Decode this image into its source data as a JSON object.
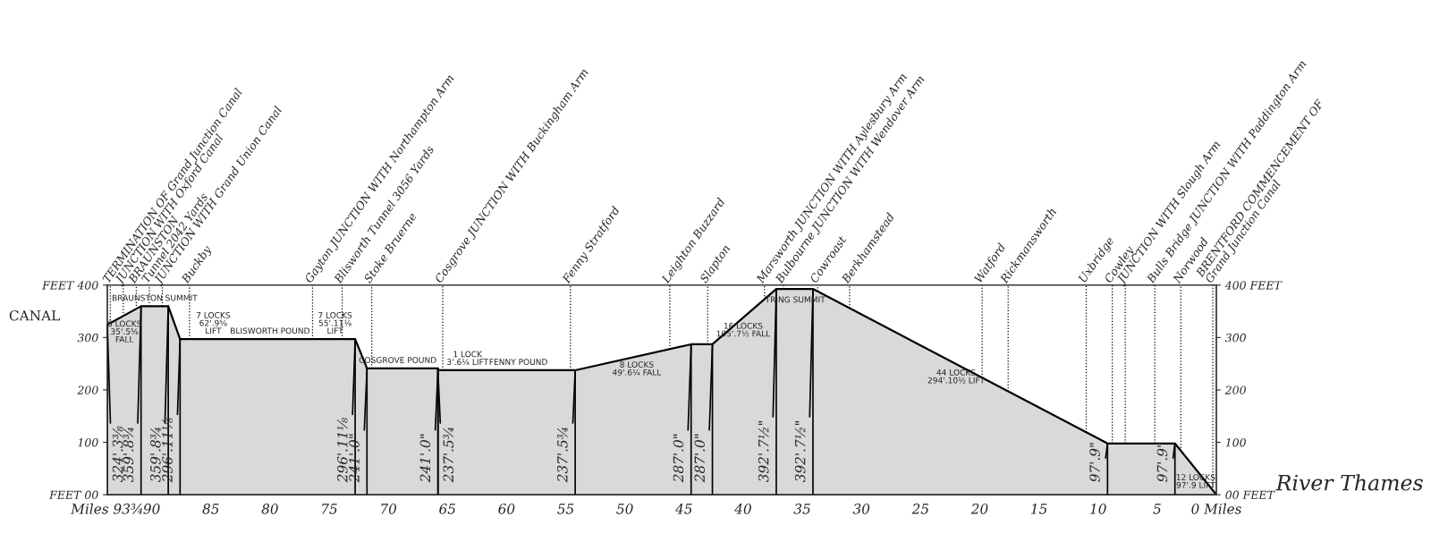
{
  "chart_data": {
    "type": "area",
    "x": [
      93.75,
      90.9,
      88.6,
      87.6,
      72.8,
      71.8,
      65.8,
      65.8,
      54.2,
      44.4,
      42.6,
      37.2,
      34.1,
      9.2,
      3.5,
      0
    ],
    "series": [
      {
        "color": "#d9d9d9",
        "values": [
          324.3,
          359.7,
          359.7,
          296.9,
          296.9,
          241.0,
          241.0,
          237.5,
          237.5,
          287.0,
          287.0,
          392.6,
          392.6,
          97.8,
          97.8,
          0
        ]
      }
    ],
    "xlim": [
      93.75,
      0
    ],
    "xticks": [
      {
        "value": 93.75,
        "label": "Miles 93¾"
      },
      90,
      85,
      80,
      75,
      70,
      65,
      60,
      55,
      50,
      45,
      40,
      35,
      30,
      25,
      20,
      15,
      10,
      5,
      {
        "value": 0,
        "label": "0 Miles"
      }
    ],
    "ylim": [
      0,
      400
    ],
    "yticks": [
      {
        "value": 0,
        "label": "FEET 00"
      },
      100,
      200,
      300,
      {
        "value": 400,
        "label": "FEET 400"
      }
    ],
    "y2lim": [
      0,
      400
    ],
    "y2ticks": [
      {
        "value": 0,
        "label": "00 FEET"
      },
      100,
      200,
      300,
      {
        "value": 400,
        "label": "400 FEET"
      }
    ],
    "ref_lines": [
      {
        "axis": "x",
        "value": 93.5,
        "label": "TERMINATION OF Grand Junction Canal",
        "line_style": "dotted"
      },
      {
        "axis": "x",
        "value": 92.4,
        "label": "JUNCTION WITH Oxford Canal",
        "line_style": "dotted"
      },
      {
        "axis": "x",
        "value": 91.3,
        "label": "BRAUNSTON",
        "line_style": "dotted"
      },
      {
        "axis": "x",
        "value": 90.2,
        "label": "Tunnel 2042 Yards",
        "line_style": "dotted"
      },
      {
        "axis": "x",
        "value": 89.1,
        "label": "JUNCTION WITH Grand Union Canal",
        "line_style": "dotted"
      },
      {
        "axis": "x",
        "value": 86.8,
        "label": "Buckby",
        "line_style": "dotted"
      },
      {
        "axis": "x",
        "value": 76.4,
        "label": "Gayton JUNCTION WITH Northampton Arm",
        "line_style": "dotted"
      },
      {
        "axis": "x",
        "value": 73.9,
        "label": "Blisworth Tunnel 3056 Yards",
        "line_style": "dotted"
      },
      {
        "axis": "x",
        "value": 71.4,
        "label": "Stoke Bruerne",
        "line_style": "dotted"
      },
      {
        "axis": "x",
        "value": 65.4,
        "label": "Cosgrove JUNCTION WITH Buckingham Arm",
        "line_style": "dotted"
      },
      {
        "axis": "x",
        "value": 54.6,
        "label": "Fenny Stratford",
        "line_style": "dotted"
      },
      {
        "axis": "x",
        "value": 46.2,
        "label": "Leighton Buzzard",
        "line_style": "dotted"
      },
      {
        "axis": "x",
        "value": 43.0,
        "label": "Slapton",
        "line_style": "dotted"
      },
      {
        "axis": "x",
        "value": 38.2,
        "label": "Marsworth JUNCTION WITH Aylesbury Arm",
        "line_style": "dotted"
      },
      {
        "axis": "x",
        "value": 36.6,
        "label": "Bulbourne JUNCTION WITH Wendover Arm",
        "line_style": "dotted"
      },
      {
        "axis": "x",
        "value": 33.7,
        "label": "Cowroast",
        "line_style": "dotted"
      },
      {
        "axis": "x",
        "value": 31.0,
        "label": "Berkhamstead",
        "line_style": "dotted"
      },
      {
        "axis": "x",
        "value": 19.8,
        "label": "Watford",
        "line_style": "dotted"
      },
      {
        "axis": "x",
        "value": 17.6,
        "label": "Rickmansworth",
        "line_style": "dotted"
      },
      {
        "axis": "x",
        "value": 11.0,
        "label": "Uxbridge",
        "line_style": "dotted"
      },
      {
        "axis": "x",
        "value": 8.8,
        "label": "Cowley",
        "line_style": "dotted"
      },
      {
        "axis": "x",
        "value": 7.7,
        "label": "JUNCTION WITH Slough Arm",
        "line_style": "dotted"
      },
      {
        "axis": "x",
        "value": 5.2,
        "label": "Bulls Bridge JUNCTION WITH Paddington Arm",
        "line_style": "dotted"
      },
      {
        "axis": "x",
        "value": 3.0,
        "label": "Norwood",
        "line_style": "dotted"
      },
      {
        "axis": "x",
        "value": 0.3,
        "label": "BRENTFORD COMMENCEMENT OF\nGrand Junction Canal",
        "line_style": "dotted"
      }
    ],
    "annotations": [
      {
        "text": "CANAL",
        "x": 93.75,
        "y": 320
      },
      {
        "text": "River Thames",
        "x": 0,
        "y": 0
      },
      {
        "text": "324'.3⅜",
        "x": 93.75,
        "y": 324.3
      },
      {
        "text": "359'.8¾",
        "x": 90.9,
        "y": 359.7
      },
      {
        "text": "359'.8¾",
        "x": 88.6,
        "y": 359.7
      },
      {
        "text": "296'.11⅛",
        "x": 87.6,
        "y": 296.9
      },
      {
        "text": "296'.11⅛",
        "x": 72.8,
        "y": 296.9
      },
      {
        "text": "241'.0\"",
        "x": 71.8,
        "y": 241.0
      },
      {
        "text": "241'.0\"",
        "x": 65.8,
        "y": 241.0
      },
      {
        "text": "237'.5¾",
        "x": 65.8,
        "y": 237.5
      },
      {
        "text": "237'.5¾",
        "x": 54.2,
        "y": 237.5
      },
      {
        "text": "287'.0\"",
        "x": 44.4,
        "y": 287.0
      },
      {
        "text": "287'.0\"",
        "x": 42.6,
        "y": 287.0
      },
      {
        "text": "392'.7½\"",
        "x": 37.2,
        "y": 392.6
      },
      {
        "text": "392'.7½\"",
        "x": 34.1,
        "y": 392.6
      },
      {
        "text": "97'.9\"",
        "x": 9.2,
        "y": 97.8
      },
      {
        "text": "97'.9\"",
        "x": 3.5,
        "y": 97.8
      },
      {
        "text": "BRAUNSTON SUMMIT",
        "x": 89.75,
        "y": 359.7
      },
      {
        "text": "6 LOCKS\n35'.5⅝\nFALL",
        "x": 92.3,
        "y": 342
      },
      {
        "text": "7 LOCKS\n62'.9⅝\nLIFT",
        "x": 84.8,
        "y": 296.9
      },
      {
        "text": "BLISWORTH POUND",
        "x": 80,
        "y": 296.9
      },
      {
        "text": "7 LOCKS\n55'.11⅛\nLIFT",
        "x": 74.5,
        "y": 296.9
      },
      {
        "text": "COSGROVE POUND",
        "x": 69.2,
        "y": 241.0
      },
      {
        "text": "1 LOCK\n3'.6¼ LIFT",
        "x": 63.3,
        "y": 237.5
      },
      {
        "text": "FENNY POUND",
        "x": 59,
        "y": 237.5
      },
      {
        "text": "8 LOCKS\n49'.6¼ FALL",
        "x": 49,
        "y": 264
      },
      {
        "text": "16 LOCKS\n105'.7½ FALL",
        "x": 40,
        "y": 338
      },
      {
        "text": "TRING SUMMIT",
        "x": 35.6,
        "y": 388
      },
      {
        "text": "44 LOCKS\n294'.10½ LIFT",
        "x": 22,
        "y": 249
      },
      {
        "text": "12 LOCKS\n97'.9 LIFT",
        "x": 1.75,
        "y": 49
      }
    ]
  }
}
